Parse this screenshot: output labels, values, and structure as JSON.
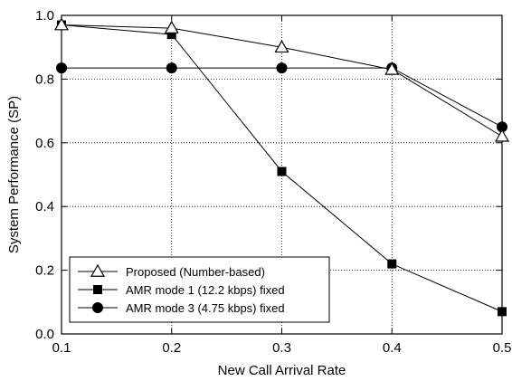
{
  "chart_data": {
    "type": "line",
    "title": "",
    "xlabel": "New Call Arrival Rate",
    "ylabel": "System Performance (SP)",
    "xlim": [
      0.1,
      0.5
    ],
    "ylim": [
      0.0,
      1.0
    ],
    "x_ticks": [
      "0.1",
      "0.2",
      "0.3",
      "0.4",
      "0.5"
    ],
    "y_ticks": [
      "0.0",
      "0.2",
      "0.4",
      "0.6",
      "0.8",
      "1.0"
    ],
    "x_tick_values": [
      0.1,
      0.2,
      0.3,
      0.4,
      0.5
    ],
    "y_tick_values": [
      0.0,
      0.2,
      0.4,
      0.6,
      0.8,
      1.0
    ],
    "grid": "dotted",
    "legend_position": "bottom-left",
    "x": [
      0.1,
      0.2,
      0.3,
      0.4,
      0.5
    ],
    "series": [
      {
        "name": "Proposed (Number-based)",
        "marker": "open-triangle",
        "values": [
          0.97,
          0.96,
          0.9,
          0.83,
          0.62
        ]
      },
      {
        "name": "AMR mode 1 (12.2 kbps) fixed",
        "marker": "filled-square",
        "values": [
          0.97,
          0.94,
          0.51,
          0.22,
          0.07
        ]
      },
      {
        "name": "AMR mode 3 (4.75 kbps) fixed",
        "marker": "filled-circle",
        "values": [
          0.835,
          0.835,
          0.835,
          0.835,
          0.65
        ]
      }
    ]
  }
}
